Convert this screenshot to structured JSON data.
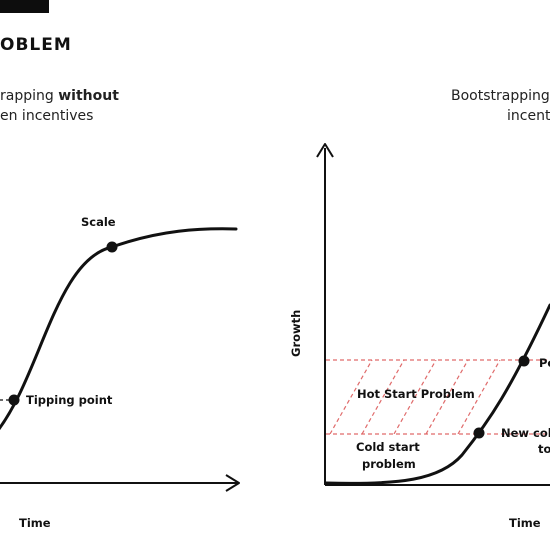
{
  "heading": "OBLEM",
  "left_panel": {
    "subtitle_line1_plain": "rapping ",
    "subtitle_line1_bold": "without",
    "subtitle_line2": "en incentives",
    "labels": {
      "scale": "Scale",
      "tipping_point": "Tipping point",
      "time": "Time"
    }
  },
  "right_panel": {
    "subtitle_line1": "Bootstrapping",
    "subtitle_line2": "incent",
    "labels": {
      "growth": "Growth",
      "hot_start": "Hot Start Problem",
      "cold_start_line1": "Cold start",
      "cold_start_line2": "problem",
      "new_cold_line1": "New col",
      "new_cold_line2": "to",
      "po": "Po",
      "time": "Time"
    }
  },
  "colors": {
    "ink": "#111111",
    "hot_zone_dash": "#e06b6b"
  }
}
